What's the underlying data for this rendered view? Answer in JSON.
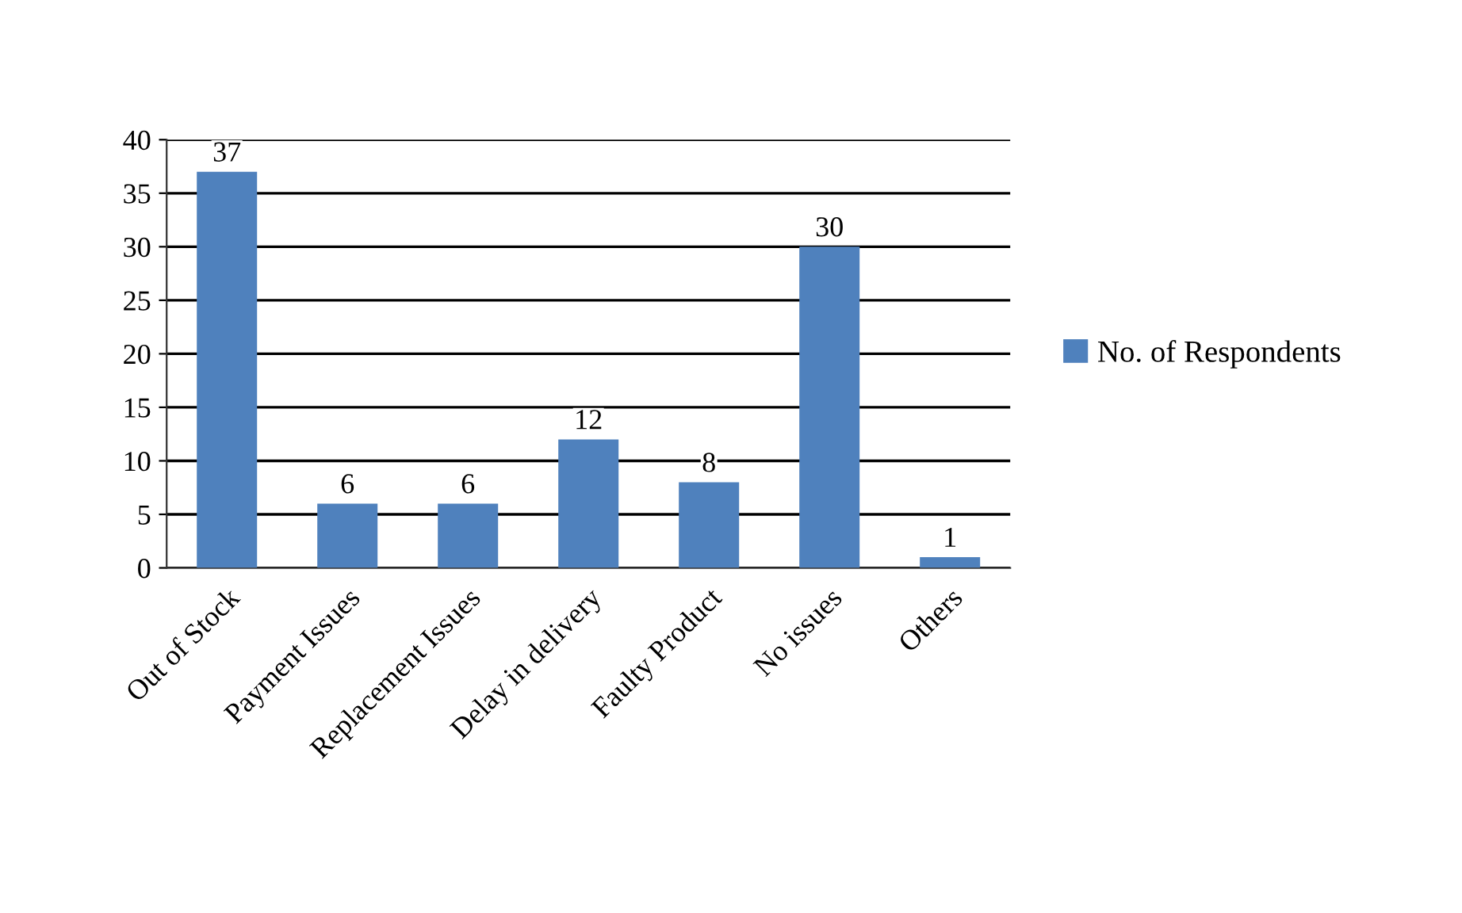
{
  "chart_data": {
    "type": "bar",
    "categories": [
      "Out of Stock",
      "Payment Issues",
      "Replacement Issues",
      "Delay in delivery",
      "Faulty Product",
      "No issues",
      "Others"
    ],
    "series": [
      {
        "name": "No. of Respondents",
        "color": "#4f81bd",
        "values": [
          37,
          6,
          6,
          12,
          8,
          30,
          1
        ]
      }
    ],
    "ylim": [
      0,
      40
    ],
    "yticks": [
      0,
      5,
      10,
      15,
      20,
      25,
      30,
      35,
      40
    ],
    "grid": "y",
    "legend": "right",
    "data_labels": true
  }
}
